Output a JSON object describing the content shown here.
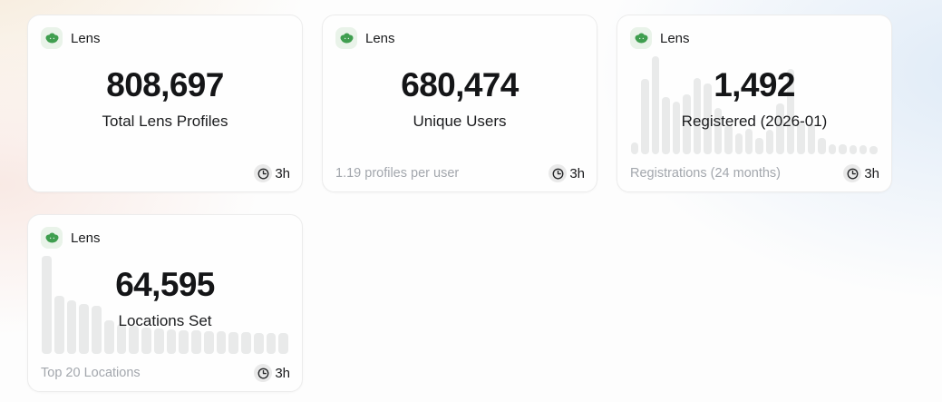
{
  "cards": [
    {
      "badge": "Lens",
      "value": "808,697",
      "label": "Total Lens Profiles",
      "footer_note": "",
      "updated": "3h",
      "chart_index": null
    },
    {
      "badge": "Lens",
      "value": "680,474",
      "label": "Unique Users",
      "footer_note": "1.19 profiles per user",
      "updated": "3h",
      "chart_index": null
    },
    {
      "badge": "Lens",
      "value": "1,492",
      "label": "Registered (2026-01)",
      "footer_note": "Registrations (24 months)",
      "updated": "3h",
      "chart_index": 0
    },
    {
      "badge": "Lens",
      "value": "64,595",
      "label": "Locations Set",
      "footer_note": "Top 20 Locations",
      "updated": "3h",
      "chart_index": 1
    }
  ],
  "chart_data": [
    {
      "type": "bar",
      "title": "Registrations (24 months)",
      "description": "Decorative background sparkline of monthly Lens registrations; no axes or tick labels shown. Values estimated as percent of tallest bar.",
      "categories": "24 months ending 2026-01",
      "values": [
        12,
        77,
        100,
        58,
        54,
        61,
        78,
        72,
        47,
        30,
        21,
        26,
        17,
        25,
        52,
        87,
        33,
        31,
        17,
        10,
        10,
        9,
        9,
        8
      ],
      "ylim": [
        0,
        100
      ],
      "grid": false,
      "legend": false
    },
    {
      "type": "bar",
      "title": "Top 20 Locations",
      "description": "Decorative background sparkline of profiles per location, ranks 1-20; no axes or tick labels shown. Values estimated as percent of tallest bar.",
      "categories": "location rank 1-20",
      "values": [
        100,
        59,
        55,
        51,
        49,
        34,
        31,
        29,
        27,
        26,
        25,
        24,
        24,
        23,
        23,
        22,
        22,
        21,
        21,
        21
      ],
      "ylim": [
        0,
        100
      ],
      "grid": false,
      "legend": false
    }
  ],
  "icons": {
    "badge": "lens-logo-icon",
    "updated": "clock-icon"
  },
  "colors": {
    "logo_green": "#3f9e4f",
    "badge_bg": "#e9f3e9",
    "bar_fill": "#e9eaea",
    "text_primary": "#17181a",
    "text_muted": "#a3a7ad",
    "card_bg": "#fefefe",
    "card_border": "#ececec",
    "clock_badge_bg": "#e9e9e9",
    "bg_warm_top_left": "#f6e9d7",
    "bg_pink_left": "#f8e6e0",
    "bg_blue_right": "#deeaf7"
  }
}
